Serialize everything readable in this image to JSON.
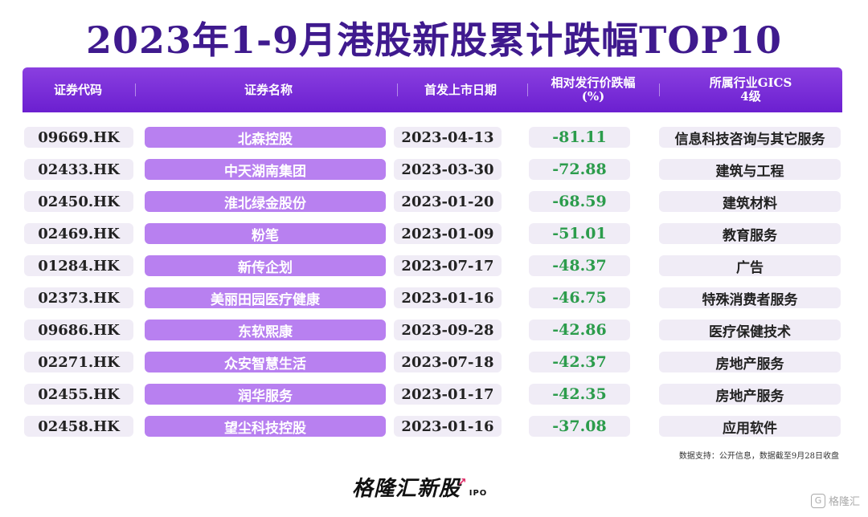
{
  "title": "2023年1-9月港股新股累计跌幅TOP10",
  "headers": {
    "code": "证券代码",
    "name": "证券名称",
    "date": "首发上市日期",
    "pct_line1": "相对发行价跌幅",
    "pct_line2": "(%)",
    "ind_line1": "所属行业GICS",
    "ind_line2": "4级"
  },
  "rows": [
    {
      "code": "09669.HK",
      "name": "北森控股",
      "date": "2023-04-13",
      "pct": "-81.11",
      "ind": "信息科技咨询与其它服务"
    },
    {
      "code": "02433.HK",
      "name": "中天湖南集团",
      "date": "2023-03-30",
      "pct": "-72.88",
      "ind": "建筑与工程"
    },
    {
      "code": "02450.HK",
      "name": "淮北绿金股份",
      "date": "2023-01-20",
      "pct": "-68.59",
      "ind": "建筑材料"
    },
    {
      "code": "02469.HK",
      "name": "粉笔",
      "date": "2023-01-09",
      "pct": "-51.01",
      "ind": "教育服务"
    },
    {
      "code": "01284.HK",
      "name": "新传企划",
      "date": "2023-07-17",
      "pct": "-48.37",
      "ind": "广告"
    },
    {
      "code": "02373.HK",
      "name": "美丽田园医疗健康",
      "date": "2023-01-16",
      "pct": "-46.75",
      "ind": "特殊消费者服务"
    },
    {
      "code": "09686.HK",
      "name": "东软熙康",
      "date": "2023-09-28",
      "pct": "-42.86",
      "ind": "医疗保健技术"
    },
    {
      "code": "02271.HK",
      "name": "众安智慧生活",
      "date": "2023-07-18",
      "pct": "-42.37",
      "ind": "房地产服务"
    },
    {
      "code": "02455.HK",
      "name": "润华服务",
      "date": "2023-01-17",
      "pct": "-42.35",
      "ind": "房地产服务"
    },
    {
      "code": "02458.HK",
      "name": "望尘科技控股",
      "date": "2023-01-16",
      "pct": "-37.08",
      "ind": "应用软件"
    }
  ],
  "source": "数据支持：公开信息，数据截至9月28日收盘",
  "logo": {
    "text": "格隆汇新股",
    "sub": "IPO"
  },
  "watermark": "格隆汇",
  "colors": {
    "title": "#3f1a8e",
    "header": "#6b1fd0",
    "name_pill": "#b880f0",
    "pct": "#2c9c4c",
    "cell_pill": "#f0ecf6"
  }
}
